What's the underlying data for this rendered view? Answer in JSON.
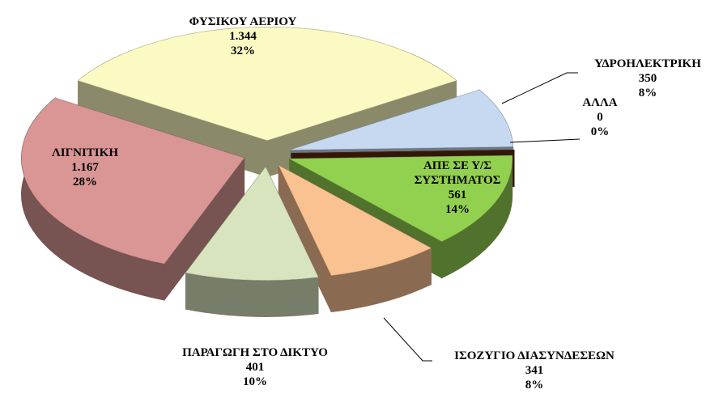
{
  "chart_data": {
    "type": "pie3d",
    "categories": [
      "ΦΥΣΙΚΟΥ ΑΕΡΙΟΥ",
      "ΥΔΡΟΗΛΕΚΤΡΙΚΗ",
      "ΑΛΛΑ",
      "ΑΠΕ ΣΕ Υ/Σ ΣΥΣΤΗΜΑΤΟΣ",
      "ΙΣΟΖΥΓΙΟ ΔΙΑΣΥΝΔΕΣΕΩΝ",
      "ΠΑΡΑΓΩΓΗ ΣΤΟ ΔΙΚΤΥΟ",
      "ΛΙΓΝΙΤΙΚΗ"
    ],
    "values": [
      1344,
      350,
      0,
      561,
      341,
      401,
      1167
    ],
    "value_labels": [
      "1.344",
      "350",
      "0",
      "561",
      "341",
      "401",
      "1.167"
    ],
    "percent_labels": [
      "32%",
      "8%",
      "0%",
      "14%",
      "8%",
      "10%",
      "28%"
    ],
    "colors": [
      "#fafac2",
      "#c6d9f1",
      "#5a2a0c",
      "#92d050",
      "#fac191",
      "#d7e4bd",
      "#d99694"
    ]
  }
}
